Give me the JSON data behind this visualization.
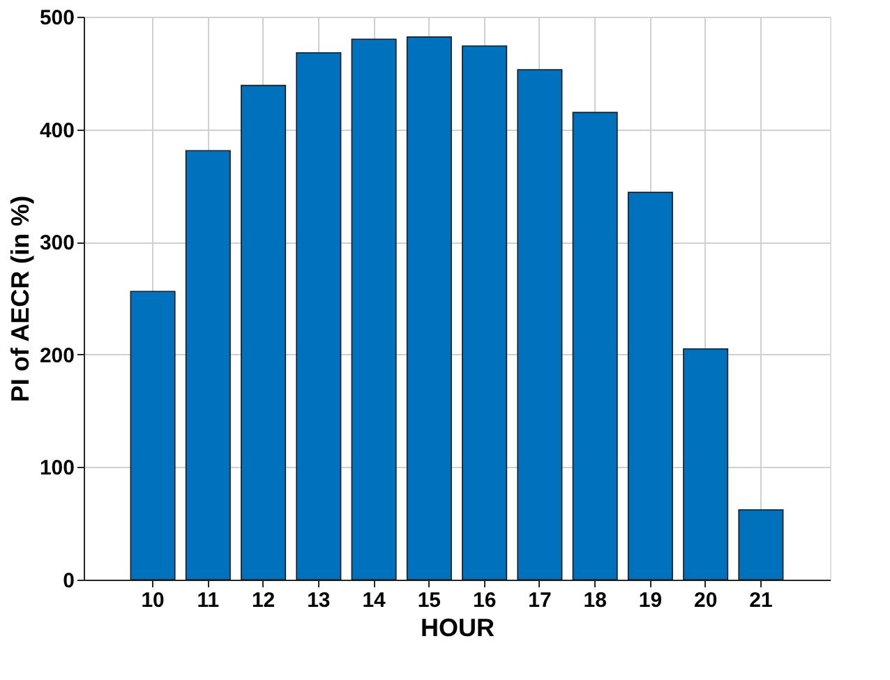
{
  "chart_data": {
    "type": "bar",
    "xlabel": "HOUR",
    "ylabel": "PI of AECR (in %)",
    "categories": [
      "10",
      "11",
      "12",
      "13",
      "14",
      "15",
      "16",
      "17",
      "18",
      "19",
      "20",
      "21"
    ],
    "values": [
      256,
      381,
      439,
      468,
      480,
      482,
      474,
      453,
      415,
      344,
      205,
      62
    ],
    "color": "#0072bd",
    "ylim": [
      0,
      500
    ],
    "yticks": [
      0,
      100,
      200,
      300,
      400,
      500
    ],
    "grid": true
  }
}
